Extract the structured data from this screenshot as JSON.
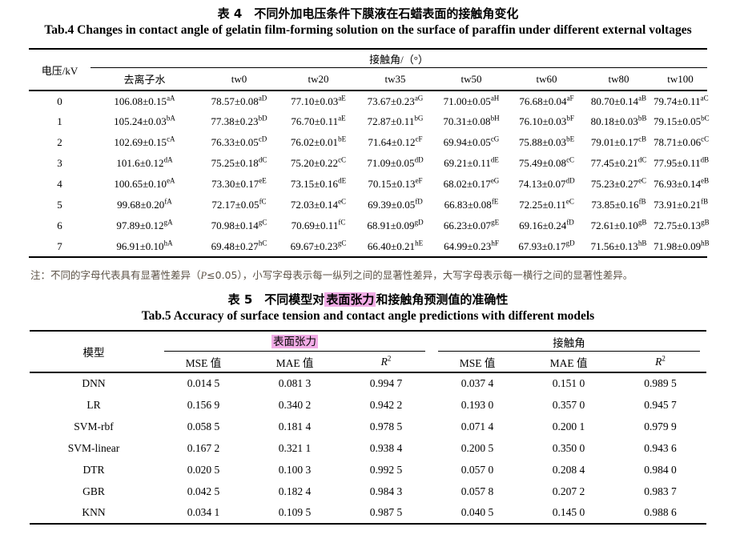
{
  "colors": {
    "highlight": "#f1ace6",
    "note_text": "#5c5246",
    "rule": "#000000"
  },
  "table4": {
    "title_zh": "表 4　不同外加电压条件下膜液在石蜡表面的接触角变化",
    "title_en": "Tab.4 Changes in contact angle of gelatin film-forming solution on the surface of paraffin under different external voltages",
    "row_header": "电压/kV",
    "col_group_label": "接触角/（°）",
    "columns": [
      "去离子水",
      "tw0",
      "tw20",
      "tw35",
      "tw50",
      "tw60",
      "tw80",
      "tw100"
    ],
    "rows": [
      {
        "voltage": "0",
        "values": [
          "106.08±0.15^aA",
          "78.57±0.08^aD",
          "77.10±0.03^aE",
          "73.67±0.23^aG",
          "71.00±0.05^aH",
          "76.68±0.04^aF",
          "80.70±0.14^aB",
          "79.74±0.11^aC"
        ]
      },
      {
        "voltage": "1",
        "values": [
          "105.24±0.03^bA",
          "77.38±0.23^bD",
          "76.70±0.11^aE",
          "72.87±0.11^bG",
          "70.31±0.08^bH",
          "76.10±0.03^bF",
          "80.18±0.03^bB",
          "79.15±0.05^bC"
        ]
      },
      {
        "voltage": "2",
        "values": [
          "102.69±0.15^cA",
          "76.33±0.05^cD",
          "76.02±0.01^bE",
          "71.64±0.12^cF",
          "69.94±0.05^cG",
          "75.88±0.03^bE",
          "79.01±0.17^cB",
          "78.71±0.06^cC"
        ]
      },
      {
        "voltage": "3",
        "values": [
          "101.6±0.12^dA",
          "75.25±0.18^dC",
          "75.20±0.22^cC",
          "71.09±0.05^dD",
          "69.21±0.11^dE",
          "75.49±0.08^cC",
          "77.45±0.21^dC",
          "77.95±0.11^dB"
        ]
      },
      {
        "voltage": "4",
        "values": [
          "100.65±0.10^eA",
          "73.30±0.17^eE",
          "73.15±0.16^dE",
          "70.15±0.13^eF",
          "68.02±0.17^eG",
          "74.13±0.07^dD",
          "75.23±0.27^eC",
          "76.93±0.14^eB"
        ]
      },
      {
        "voltage": "5",
        "values": [
          "99.68±0.20^fA",
          "72.17±0.05^fC",
          "72.03±0.14^eC",
          "69.39±0.05^fD",
          "66.83±0.08^fE",
          "72.25±0.11^eC",
          "73.85±0.16^fB",
          "73.91±0.21^fB"
        ]
      },
      {
        "voltage": "6",
        "values": [
          "97.89±0.12^gA",
          "70.98±0.14^gC",
          "70.69±0.11^fC",
          "68.91±0.09^gD",
          "66.23±0.07^gE",
          "69.16±0.24^fD",
          "72.61±0.10^gB",
          "72.75±0.13^gB"
        ]
      },
      {
        "voltage": "7",
        "values": [
          "96.91±0.10^hA",
          "69.48±0.27^hC",
          "69.67±0.23^gC",
          "66.40±0.21^hE",
          "64.99±0.23^hF",
          "67.93±0.17^gD",
          "71.56±0.13^hB",
          "71.98±0.09^hB"
        ]
      }
    ],
    "note_prefix": "注：不同的字母代表具有显著性差异（",
    "note_var": "P",
    "note_suffix": "≤0.05），小写字母表示每一纵列之间的显著性差异，大写字母表示每一横行之间的显著性差异。"
  },
  "table5": {
    "title_zh_prefix": "表 5　不同模型对",
    "title_zh_highlight": "表面张力",
    "title_zh_suffix": "和接触角预测值的准确性",
    "title_en": "Tab.5 Accuracy of surface tension and contact angle predictions with different models",
    "row_header": "模型",
    "groups": [
      {
        "label": "表面张力",
        "highlight": true
      },
      {
        "label": "接触角",
        "highlight": false
      }
    ],
    "sub_columns": [
      "MSE 值",
      "MAE 值",
      "R^2"
    ],
    "rows": [
      {
        "model": "DNN",
        "values": [
          "0.014 5",
          "0.081 3",
          "0.994 7",
          "0.037 4",
          "0.151 0",
          "0.989 5"
        ]
      },
      {
        "model": "LR",
        "values": [
          "0.156 9",
          "0.340 2",
          "0.942 2",
          "0.193 0",
          "0.357 0",
          "0.945 7"
        ]
      },
      {
        "model": "SVM-rbf",
        "values": [
          "0.058 5",
          "0.181 4",
          "0.978 5",
          "0.071 4",
          "0.200 1",
          "0.979 9"
        ]
      },
      {
        "model": "SVM-linear",
        "values": [
          "0.167 2",
          "0.321 1",
          "0.938 4",
          "0.200 5",
          "0.350 0",
          "0.943 6"
        ]
      },
      {
        "model": "DTR",
        "values": [
          "0.020 5",
          "0.100 3",
          "0.992 5",
          "0.057 0",
          "0.208 4",
          "0.984 0"
        ]
      },
      {
        "model": "GBR",
        "values": [
          "0.042 5",
          "0.182 4",
          "0.984 3",
          "0.057 8",
          "0.207 2",
          "0.983 7"
        ]
      },
      {
        "model": "KNN",
        "values": [
          "0.034 1",
          "0.109 5",
          "0.987 5",
          "0.040 5",
          "0.145 0",
          "0.988 6"
        ]
      }
    ]
  }
}
